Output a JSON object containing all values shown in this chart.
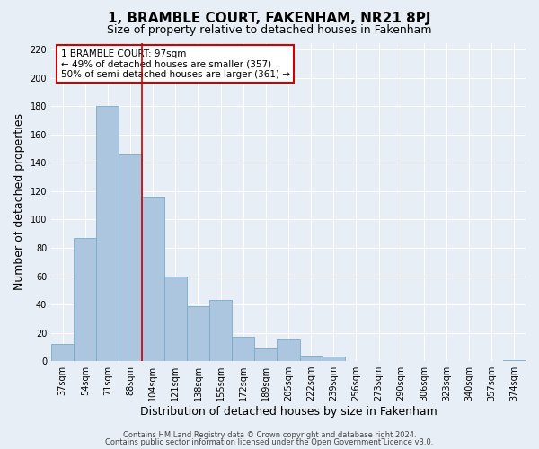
{
  "title": "1, BRAMBLE COURT, FAKENHAM, NR21 8PJ",
  "subtitle": "Size of property relative to detached houses in Fakenham",
  "xlabel": "Distribution of detached houses by size in Fakenham",
  "ylabel": "Number of detached properties",
  "footer_line1": "Contains HM Land Registry data © Crown copyright and database right 2024.",
  "footer_line2": "Contains public sector information licensed under the Open Government Licence v3.0.",
  "bar_labels": [
    "37sqm",
    "54sqm",
    "71sqm",
    "88sqm",
    "104sqm",
    "121sqm",
    "138sqm",
    "155sqm",
    "172sqm",
    "189sqm",
    "205sqm",
    "222sqm",
    "239sqm",
    "256sqm",
    "273sqm",
    "290sqm",
    "306sqm",
    "323sqm",
    "340sqm",
    "357sqm",
    "374sqm"
  ],
  "bar_values": [
    12,
    87,
    180,
    146,
    116,
    60,
    39,
    43,
    17,
    9,
    15,
    4,
    3,
    0,
    0,
    0,
    0,
    0,
    0,
    0,
    1
  ],
  "bar_color": "#adc6e0",
  "bar_edgecolor": "#7aaac8",
  "property_line_x": 3.5,
  "property_line_color": "#cc0000",
  "annotation_text": "1 BRAMBLE COURT: 97sqm\n← 49% of detached houses are smaller (357)\n50% of semi-detached houses are larger (361) →",
  "annotation_box_edgecolor": "#cc0000",
  "annotation_box_facecolor": "#ffffff",
  "ylim": [
    0,
    225
  ],
  "yticks": [
    0,
    20,
    40,
    60,
    80,
    100,
    120,
    140,
    160,
    180,
    200,
    220
  ],
  "bg_color": "#e8eef5",
  "plot_bg_color": "#e8eef5",
  "grid_color": "#ffffff",
  "title_fontsize": 11,
  "subtitle_fontsize": 9,
  "tick_fontsize": 7,
  "label_fontsize": 9,
  "footer_fontsize": 6,
  "annotation_fontsize": 7.5
}
